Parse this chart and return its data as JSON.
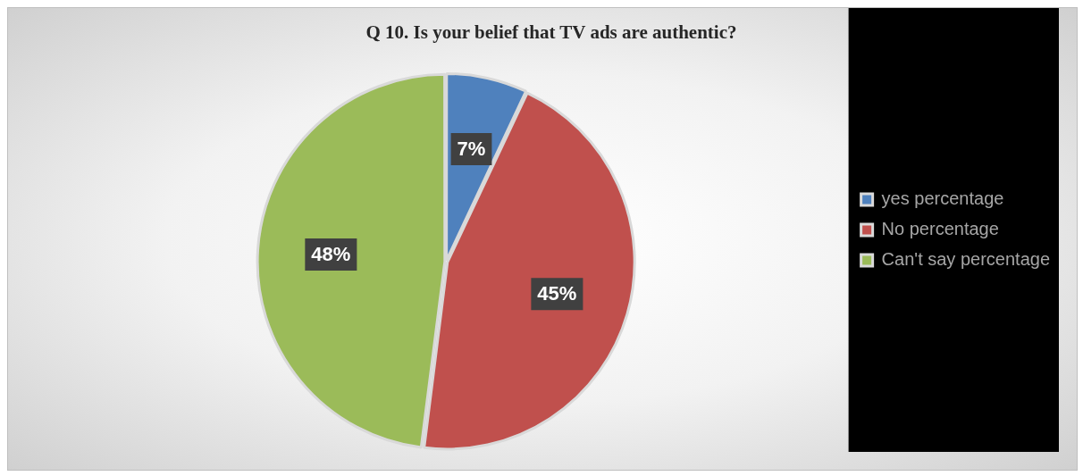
{
  "chart_data": {
    "type": "pie",
    "title": "Q 10. Is your belief that TV ads are authentic?",
    "categories": [
      "yes percentage",
      "No percentage",
      "Can't say percentage"
    ],
    "values": [
      7,
      45,
      48
    ],
    "colors": [
      "#4f81bd",
      "#c0504d",
      "#9bbb59"
    ],
    "value_labels": [
      "7%",
      "45%",
      "48%"
    ],
    "legend": "right"
  }
}
